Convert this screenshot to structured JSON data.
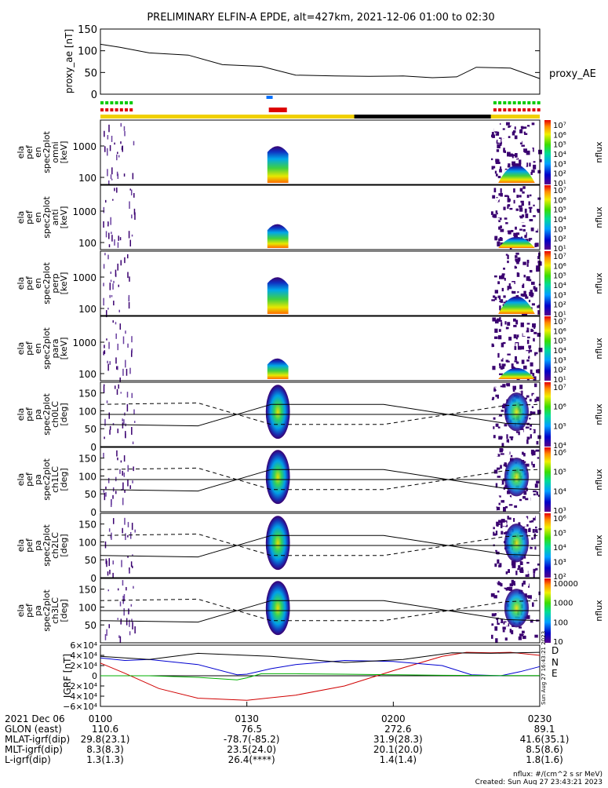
{
  "title": "PRELIMINARY ELFIN-A EPDE, alt=427km, 2021-12-06 01:00 to 02:30",
  "time_range_min": [
    0,
    90
  ],
  "chart_data": [
    {
      "id": "proxy_ae",
      "type": "line",
      "ylabel": "proxy_ae [nT]",
      "legend": "proxy_AE",
      "ylim": [
        0,
        150
      ],
      "yticks": [
        "0",
        "50",
        "100",
        "150"
      ],
      "ytick_values": [
        0,
        50,
        100,
        150
      ],
      "x_min": [
        0,
        4,
        10,
        18,
        25,
        33,
        40,
        48,
        55,
        62,
        68,
        73,
        77,
        84,
        90
      ],
      "y": [
        115,
        108,
        95,
        90,
        68,
        64,
        44,
        42,
        41,
        42,
        38,
        40,
        62,
        60,
        36
      ]
    },
    {
      "id": "spectrograms",
      "type": "heatmap",
      "panels": [
        {
          "label": [
            "ela",
            "pef",
            "en",
            "spec2plot",
            "omni",
            "[keV]"
          ],
          "yticks": [
            "100",
            "1000"
          ],
          "cbar_ticks": [
            "10⁷",
            "10⁶",
            "10⁵",
            "10⁴",
            "10³",
            "10²",
            "10¹"
          ],
          "cbar_label": "nflux"
        },
        {
          "label": [
            "ela",
            "pef",
            "en",
            "spec2plot",
            "anti",
            "[keV]"
          ],
          "yticks": [
            "100",
            "1000"
          ],
          "cbar_ticks": [
            "10⁷",
            "10⁶",
            "10⁵",
            "10⁴",
            "10³",
            "10²",
            "10¹"
          ],
          "cbar_label": "nflux"
        },
        {
          "label": [
            "ela",
            "pef",
            "en",
            "spec2plot",
            "perp",
            "[keV]"
          ],
          "yticks": [
            "100",
            "1000"
          ],
          "cbar_ticks": [
            "10⁷",
            "10⁶",
            "10⁵",
            "10⁴",
            "10³",
            "10²",
            "10¹"
          ],
          "cbar_label": "nflux"
        },
        {
          "label": [
            "ela",
            "pef",
            "en",
            "spec2plot",
            "para",
            "[keV]"
          ],
          "yticks": [
            "100",
            "1000"
          ],
          "cbar_ticks": [
            "10⁷",
            "10⁶",
            "10⁵",
            "10⁴",
            "10³",
            "10²",
            "10¹"
          ],
          "cbar_label": "nflux"
        },
        {
          "label": [
            "ela",
            "pef",
            "pa",
            "spec2plot",
            "ch0LC",
            "[deg]"
          ],
          "yticks": [
            "0",
            "50",
            "100",
            "150"
          ],
          "cbar_ticks": [
            "10⁷",
            "10⁶",
            "10⁵",
            "10⁴"
          ],
          "cbar_label": "nflux"
        },
        {
          "label": [
            "ela",
            "pef",
            "pa",
            "spec2plot",
            "ch1LC",
            "[deg]"
          ],
          "yticks": [
            "0",
            "50",
            "100",
            "150"
          ],
          "cbar_ticks": [
            "10⁶",
            "10⁵",
            "10⁴",
            "10³"
          ],
          "cbar_label": "nflux"
        },
        {
          "label": [
            "ela",
            "pef",
            "pa",
            "spec2plot",
            "ch2LC",
            "[deg]"
          ],
          "yticks": [
            "0",
            "50",
            "100",
            "150"
          ],
          "cbar_ticks": [
            "10⁶",
            "10⁵",
            "10⁴",
            "10³",
            "10²"
          ],
          "cbar_label": "nflux"
        },
        {
          "label": [
            "ela",
            "pef",
            "pa",
            "spec2plot",
            "ch3LC",
            "[deg]"
          ],
          "yticks": [
            "50",
            "100",
            "150"
          ],
          "cbar_ticks": [
            "10000",
            "1000",
            "100",
            "10"
          ],
          "cbar_label": "nflux"
        }
      ]
    },
    {
      "id": "igrf",
      "type": "line",
      "ylabel": "IGRF [nT]",
      "ylim": [
        -60000,
        60000
      ],
      "yticks": [
        "6×10⁴",
        "4×10⁴",
        "2×10⁴",
        "0",
        "−2×10⁴",
        "−4×10⁴",
        "−6×10⁴"
      ],
      "ytick_values": [
        60000,
        40000,
        20000,
        0,
        -20000,
        -40000,
        -60000
      ],
      "series": [
        {
          "name": "D",
          "color": "#d00000",
          "x_min": [
            0,
            5,
            12,
            20,
            30,
            40,
            50,
            60,
            70,
            75,
            80,
            84,
            90
          ],
          "y": [
            25000,
            5000,
            -25000,
            -44000,
            -48000,
            -38000,
            -20000,
            10000,
            38000,
            46000,
            45000,
            46000,
            40000
          ]
        },
        {
          "name": "N",
          "color": "#0000d0",
          "x_min": [
            0,
            5,
            10,
            20,
            28,
            30,
            35,
            40,
            50,
            60,
            70,
            76,
            82,
            86,
            90
          ],
          "y": [
            35000,
            30000,
            32000,
            22000,
            2000,
            3000,
            14000,
            22000,
            30000,
            28000,
            20000,
            2000,
            0,
            8000,
            18000
          ]
        },
        {
          "name": "E",
          "color": "#00b000",
          "x_min": [
            0,
            10,
            20,
            28,
            30,
            33,
            40,
            50,
            60,
            70,
            80,
            90
          ],
          "y": [
            0,
            0,
            -3000,
            -8000,
            -4000,
            4000,
            4000,
            3000,
            2000,
            1000,
            500,
            500
          ]
        },
        {
          "name": "",
          "color": "#000000",
          "x_min": [
            0,
            10,
            20,
            35,
            50,
            62,
            72,
            80,
            90
          ],
          "y": [
            38000,
            32000,
            44000,
            38000,
            26000,
            32000,
            45000,
            44000,
            46000
          ]
        }
      ]
    }
  ],
  "igrf_legend": {
    "d": "D",
    "n": "N",
    "e": "E"
  },
  "side_stamp": "Sun Aug 27 16:43:21 2023",
  "time_ticks": [
    "0100",
    "0130",
    "0200",
    "0230"
  ],
  "ephemeris": {
    "date": "2021 Dec 06",
    "rows": [
      {
        "label": "GLON (east)",
        "values": [
          "110.6",
          "76.5",
          "272.6",
          "89.1"
        ]
      },
      {
        "label": "MLAT-igrf(dip)",
        "values": [
          "29.8(23.1)",
          "-78.7(-85.2)",
          "31.9(28.3)",
          "41.6(35.1)"
        ]
      },
      {
        "label": "MLT-igrf(dip)",
        "values": [
          "8.3(8.3)",
          "23.5(24.0)",
          "20.1(20.0)",
          "8.5(8.6)"
        ]
      },
      {
        "label": "L-igrf(dip)",
        "values": [
          "1.3(1.3)",
          "26.4(****)",
          "1.4(1.4)",
          "1.8(1.6)"
        ]
      }
    ]
  },
  "footer": {
    "units": "nflux: #/(cm^2 s sr MeV)",
    "created": "Created: Sun Aug 27 23:43:21 2023"
  },
  "colors": {
    "fast_survey": "#00cc00",
    "science_zone": "#dd0000",
    "sunlight": "#f0d000",
    "eclipse": "#000000",
    "burst": "#0070ff"
  }
}
